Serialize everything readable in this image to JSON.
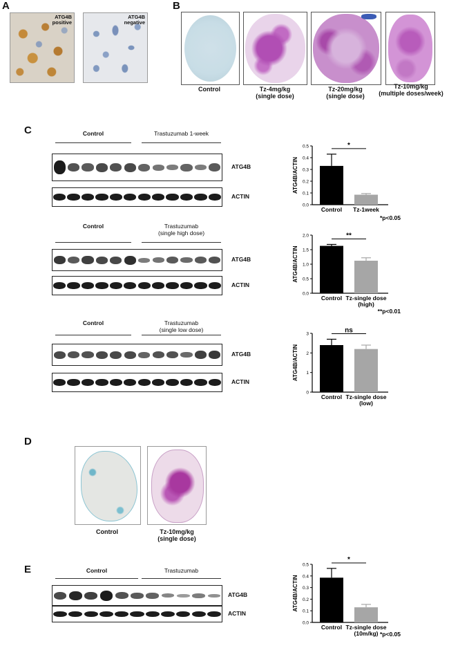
{
  "panels": {
    "A": "A",
    "B": "B",
    "C": "C",
    "D": "D",
    "E": "E"
  },
  "panelA": {
    "left_label": "ATG4B\npositive",
    "right_label": "ATG4B\nnegative"
  },
  "panelB": {
    "captions": [
      "Control",
      "Tz-4mg/kg\n(single dose)",
      "Tz-20mg/kg\n(single dose)",
      "Tz-10mg/kg\n(multiple doses/week)"
    ]
  },
  "panelD": {
    "captions": [
      "Control",
      "Tz-10mg/kg\n(single dose)"
    ]
  },
  "blots": [
    {
      "group_left": "Control",
      "group_right": "Trastuzumab  1-week",
      "rows": [
        "ATG4B",
        "ACTIN"
      ],
      "intensity": [
        1.0,
        0.55,
        0.5,
        0.6,
        0.55,
        0.6,
        0.45,
        0.35,
        0.3,
        0.45,
        0.3,
        0.5
      ]
    },
    {
      "group_left": "Control",
      "group_right": "Trastuzumab\n(single high dose)",
      "rows": [
        "ATG4B",
        "ACTIN"
      ],
      "intensity": [
        0.7,
        0.5,
        0.65,
        0.6,
        0.6,
        0.75,
        0.3,
        0.35,
        0.5,
        0.4,
        0.5,
        0.55
      ]
    },
    {
      "group_left": "Control",
      "group_right": "Trastuzumab\n(single low dose)",
      "rows": [
        "ATG4B",
        "ACTIN"
      ],
      "intensity": [
        0.6,
        0.55,
        0.55,
        0.6,
        0.6,
        0.6,
        0.45,
        0.55,
        0.55,
        0.4,
        0.65,
        0.7
      ]
    },
    {
      "group_left": "Control",
      "group_right": "Trastuzumab",
      "rows": [
        "ATG4B",
        "ACTIN"
      ],
      "intensity": [
        0.6,
        0.8,
        0.65,
        0.95,
        0.55,
        0.5,
        0.45,
        0.25,
        0.12,
        0.3,
        0.18
      ]
    }
  ],
  "chart_data": [
    {
      "type": "bar",
      "categories": [
        "Control",
        "Tz-1week"
      ],
      "values": [
        0.33,
        0.085
      ],
      "errors": [
        0.1,
        0.01
      ],
      "ylabel": "ATG4B/ACTIN",
      "ylim": [
        0,
        0.5
      ],
      "yticks": [
        "0.0",
        "0.1",
        "0.2",
        "0.3",
        "0.4",
        "0.5"
      ],
      "significance": "*",
      "note": "*p<0.05",
      "colors": [
        "#000000",
        "#a6a6a6"
      ]
    },
    {
      "type": "bar",
      "categories": [
        "Control",
        "Tz-single dose\n(high)"
      ],
      "values": [
        1.63,
        1.12
      ],
      "errors": [
        0.05,
        0.1
      ],
      "ylabel": "ATG4B/ACTIN",
      "ylim": [
        0,
        2.0
      ],
      "yticks": [
        "0.0",
        "0.5",
        "1.0",
        "1.5",
        "2.0"
      ],
      "significance": "**",
      "note": "**p<0.01",
      "colors": [
        "#000000",
        "#a6a6a6"
      ]
    },
    {
      "type": "bar",
      "categories": [
        "Control",
        "Tz-single dose\n(low)"
      ],
      "values": [
        2.4,
        2.2
      ],
      "errors": [
        0.3,
        0.2
      ],
      "ylabel": "ATG4B/ACTIN",
      "ylim": [
        0,
        3
      ],
      "yticks": [
        "0",
        "1",
        "2",
        "3"
      ],
      "significance": "ns",
      "note": "",
      "colors": [
        "#000000",
        "#a6a6a6"
      ]
    },
    {
      "type": "bar",
      "categories": [
        "Control",
        "Tz-single dose\n(10m/kg)"
      ],
      "values": [
        0.385,
        0.13
      ],
      "errors": [
        0.08,
        0.025
      ],
      "ylabel": "ATG4B/ACTIN",
      "ylim": [
        0,
        0.5
      ],
      "yticks": [
        "0.0",
        "0.1",
        "0.2",
        "0.3",
        "0.4",
        "0.5"
      ],
      "significance": "*",
      "note": "*p<0.05",
      "colors": [
        "#000000",
        "#a6a6a6"
      ]
    }
  ]
}
